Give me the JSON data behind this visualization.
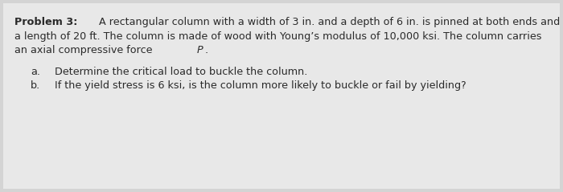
{
  "background_color": "#d4d4d4",
  "box_facecolor": "#e8e8e8",
  "text_color": "#2a2a2a",
  "font_size": 9.2,
  "line1_bold": "Problem 3:",
  "line1_normal": " A rectangular column with a width of 3 in. and a depth of 6 in. is pinned at both ends and has",
  "line2": "a length of 20 ft. The column is made of wood with Young’s modulus of 10,000 ksi. The column carries",
  "line3_pre": "an axial compressive force ",
  "line3_italic": "P",
  "line3_post": ".",
  "item_a_label": "a.",
  "item_a_text": "Determine the critical load to buckle the column.",
  "item_b_label": "b.",
  "item_b_text": "If the yield stress is 6 ksi, is the column more likely to buckle or fail by yielding?"
}
